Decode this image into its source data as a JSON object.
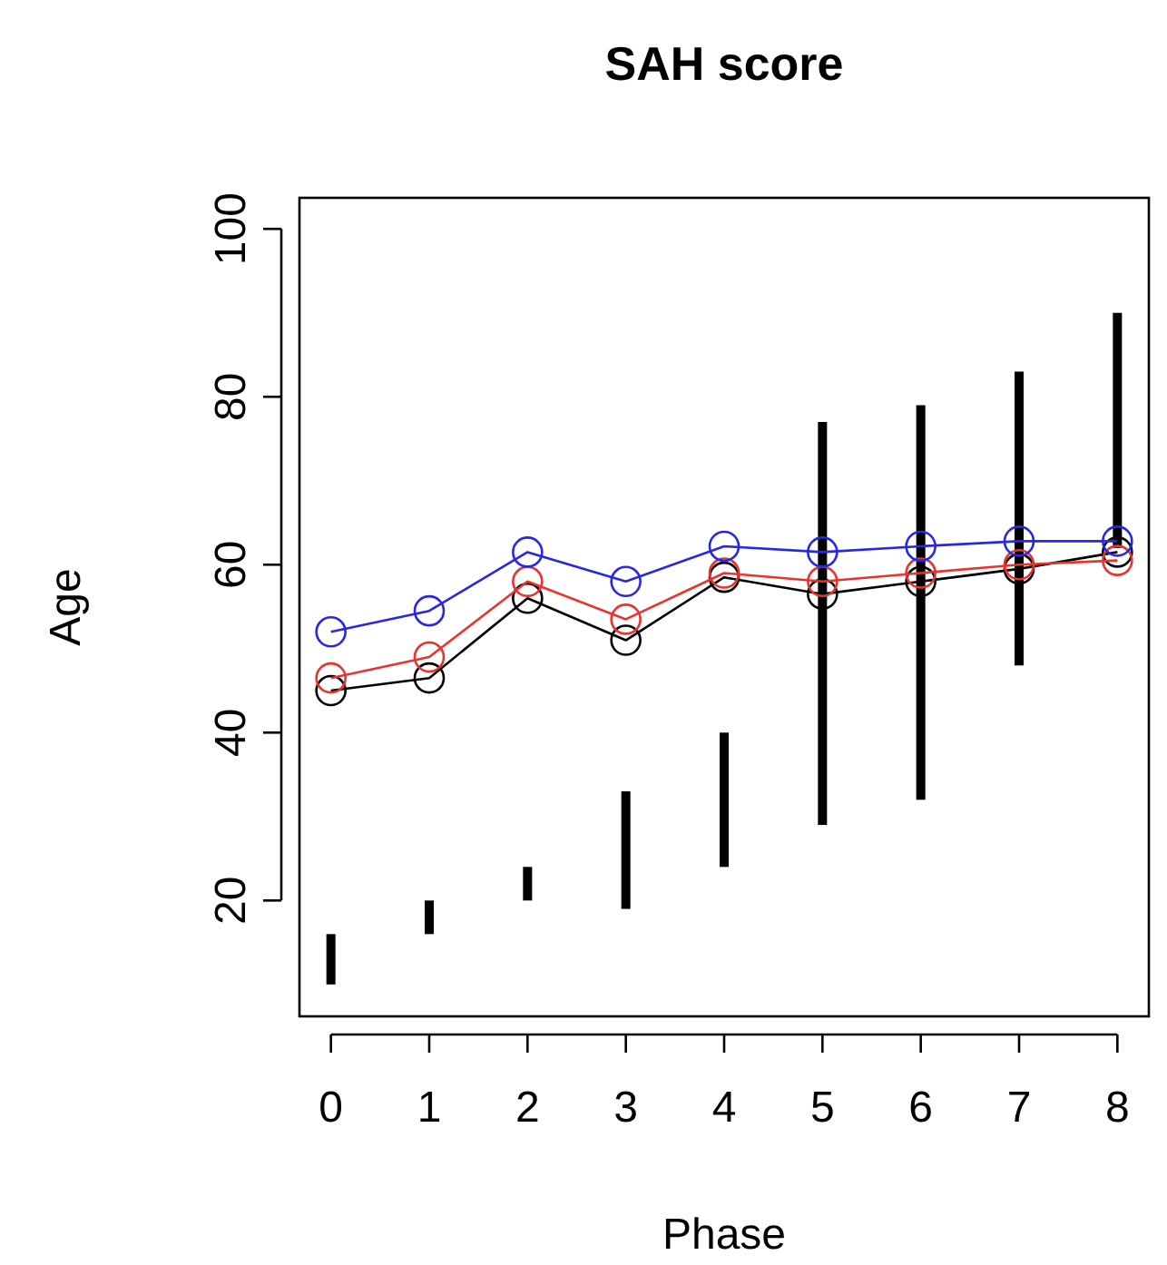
{
  "chart_data": {
    "type": "line",
    "title": "SAH score",
    "xlabel": "Phase",
    "ylabel": "Age",
    "x": [
      0,
      1,
      2,
      3,
      4,
      5,
      6,
      7,
      8
    ],
    "xlim": [
      -0.32,
      8.32
    ],
    "xticks": [
      0,
      1,
      2,
      3,
      4,
      5,
      6,
      7,
      8
    ],
    "ylim": [
      6.2,
      103.7
    ],
    "yticks": [
      20,
      40,
      60,
      80,
      100
    ],
    "grid": false,
    "marker": "circle",
    "line_style": "solid",
    "series": [
      {
        "type": "bar",
        "color": "#000000",
        "base": [
          10,
          16,
          20,
          19,
          24,
          29,
          32,
          48,
          62
        ],
        "values": [
          6,
          4,
          4,
          14,
          16,
          48,
          47,
          35,
          28
        ]
      },
      {
        "color": "#000000",
        "values": [
          45,
          46.5,
          56,
          51,
          58.5,
          56.5,
          58,
          59.5,
          61.5
        ]
      },
      {
        "color": "#e8332f",
        "values": [
          46.5,
          49,
          58,
          53.5,
          59,
          58,
          59,
          60,
          60.5
        ]
      },
      {
        "color": "#2727e6",
        "values": [
          52,
          54.5,
          61.5,
          58,
          62.2,
          61.5,
          62.2,
          62.8,
          62.8
        ]
      }
    ]
  }
}
